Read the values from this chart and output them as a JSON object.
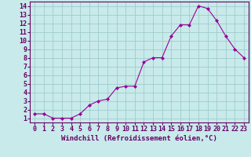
{
  "x": [
    0,
    1,
    2,
    3,
    4,
    5,
    6,
    7,
    8,
    9,
    10,
    11,
    12,
    13,
    14,
    15,
    16,
    17,
    18,
    19,
    20,
    21,
    22,
    23
  ],
  "y": [
    1.5,
    1.5,
    1.0,
    1.0,
    1.0,
    1.5,
    2.5,
    3.0,
    3.2,
    4.5,
    4.7,
    4.7,
    7.5,
    8.0,
    8.0,
    10.5,
    11.8,
    11.8,
    14.0,
    13.7,
    12.3,
    10.5,
    9.0,
    8.0
  ],
  "line_color": "#990099",
  "marker": "D",
  "marker_size": 2,
  "bg_color": "#c8eaea",
  "grid_color": "#a0cccc",
  "xlabel": "Windchill (Refroidissement éolien,°C)",
  "xlabel_color": "#660066",
  "tick_color": "#660066",
  "ylim": [
    0.5,
    14.5
  ],
  "xlim": [
    -0.5,
    23.5
  ],
  "yticks": [
    1,
    2,
    3,
    4,
    5,
    6,
    7,
    8,
    9,
    10,
    11,
    12,
    13,
    14
  ],
  "xticks": [
    0,
    1,
    2,
    3,
    4,
    5,
    6,
    7,
    8,
    9,
    10,
    11,
    12,
    13,
    14,
    15,
    16,
    17,
    18,
    19,
    20,
    21,
    22,
    23
  ],
  "spine_color": "#660066",
  "tick_fontsize": 6,
  "xlabel_fontsize": 6.5
}
